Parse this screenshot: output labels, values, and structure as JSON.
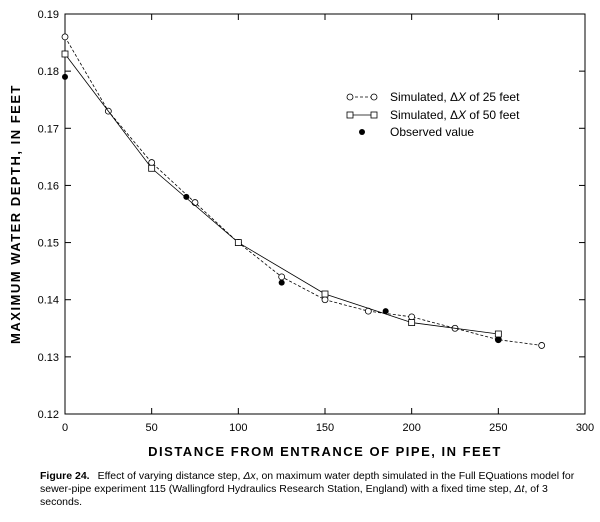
{
  "chart_data": {
    "type": "line",
    "xlabel": "DISTANCE FROM ENTRANCE OF PIPE, IN FEET",
    "ylabel": "MAXIMUM WATER DEPTH, IN FEET",
    "xlim": [
      0,
      300
    ],
    "ylim": [
      0.12,
      0.19
    ],
    "xticks": [
      0,
      50,
      100,
      150,
      200,
      250,
      300
    ],
    "yticks": [
      0.12,
      0.13,
      0.14,
      0.15,
      0.16,
      0.17,
      0.18,
      0.19
    ],
    "xtick_labels": [
      "0",
      "50",
      "100",
      "150",
      "200",
      "250",
      "300"
    ],
    "ytick_labels": [
      "0.12",
      "0.13",
      "0.14",
      "0.15",
      "0.16",
      "0.17",
      "0.18",
      "0.19"
    ],
    "grid": false,
    "legend_position": "upper-right",
    "series": [
      {
        "name": "Simulated, ΔX of 25 feet",
        "legend_prefix": "Simulated, ",
        "legend_delta": "Δ",
        "legend_var": "X",
        "legend_suffix": " of 25 feet",
        "marker": "circle-open",
        "line": "dashed",
        "x": [
          0,
          25,
          50,
          75,
          100,
          125,
          150,
          175,
          200,
          225,
          250,
          275
        ],
        "y": [
          0.186,
          0.173,
          0.164,
          0.157,
          0.15,
          0.144,
          0.14,
          0.138,
          0.137,
          0.135,
          0.133,
          0.132
        ]
      },
      {
        "name": "Simulated, ΔX of 50 feet",
        "legend_prefix": "Simulated, ",
        "legend_delta": "Δ",
        "legend_var": "X",
        "legend_suffix": " of 50 feet",
        "marker": "square-open",
        "line": "solid",
        "x": [
          0,
          50,
          100,
          150,
          200,
          250
        ],
        "y": [
          0.183,
          0.163,
          0.15,
          0.141,
          0.136,
          0.134
        ]
      },
      {
        "name": "Observed value",
        "legend_label": "Observed value",
        "marker": "circle-filled",
        "line": "none",
        "x": [
          0,
          70,
          125,
          185,
          250
        ],
        "y": [
          0.179,
          0.158,
          0.143,
          0.138,
          0.133
        ]
      }
    ]
  },
  "caption": {
    "figure_label": "Figure 24.",
    "text_1": "Effect of varying distance step, ",
    "sym_dx": "Δx",
    "text_2": ", on maximum water depth simulated in the Full EQuations model for sewer-pipe experiment 115 (Wallingford Hydraulics Research Station, England) with a fixed time step, ",
    "sym_dt": "Δt",
    "text_3": ", of 3 seconds."
  }
}
